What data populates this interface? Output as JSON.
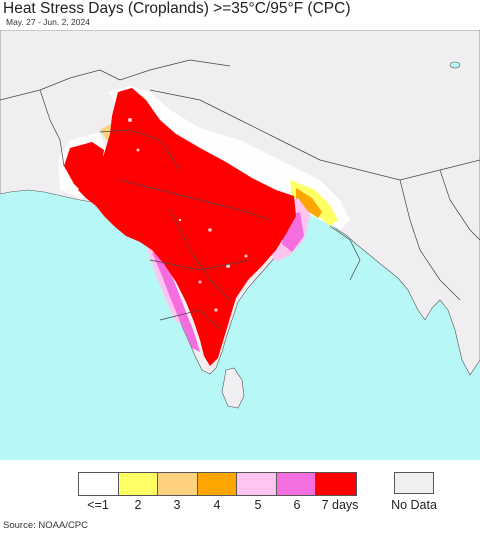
{
  "header": {
    "title": "Heat Stress Days (Croplands) >=35°C/95°F (CPC)",
    "date_range": "May. 27 - Jun. 2, 2024"
  },
  "map": {
    "colors": {
      "ocean": "#b7f7f5",
      "land_nodata": "#f1eef2",
      "border": "#444444",
      "red_7days": "#ff0000",
      "magenta_6": "#f46ee0",
      "pink_5": "#ffc4ef",
      "orange_4": "#ffa500",
      "lightorange_3": "#ffd27f",
      "yellow_2": "#ffff66",
      "white_1": "#ffffff"
    }
  },
  "legend": {
    "items": [
      {
        "label": "<=1",
        "color": "#ffffff"
      },
      {
        "label": "2",
        "color": "#ffff66"
      },
      {
        "label": "3",
        "color": "#ffd27f"
      },
      {
        "label": "4",
        "color": "#ffa500"
      },
      {
        "label": "5",
        "color": "#ffc4ef"
      },
      {
        "label": "6",
        "color": "#f46ee0"
      },
      {
        "label": "7 days",
        "color": "#ff0000"
      }
    ],
    "no_data": {
      "label": "No Data",
      "color": "#f1eef2"
    }
  },
  "footer": {
    "source": "Source: NOAA/CPC"
  }
}
